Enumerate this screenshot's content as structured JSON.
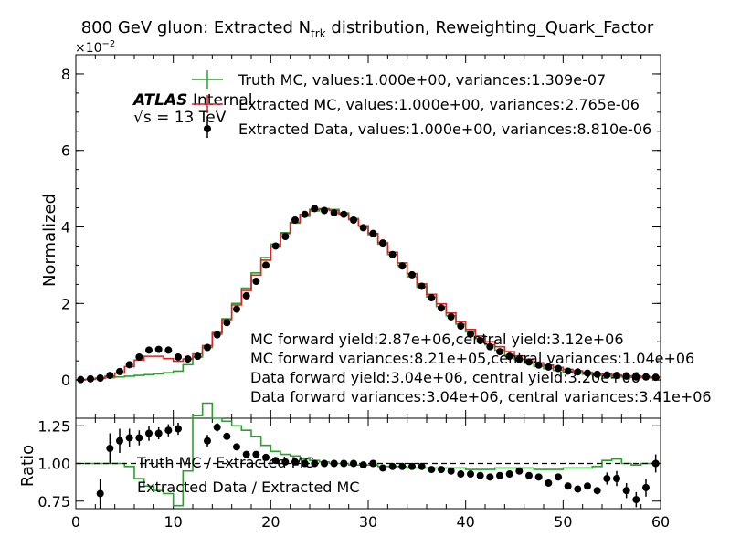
{
  "chart_data": [
    {
      "type": "step",
      "title_main": "800 GeV gluon: Extracted N",
      "title_sub": "trk",
      "title_rest": " distribution, Reweighting_Quark_Factor",
      "ylabel": "Normalized",
      "xlim": [
        0,
        60
      ],
      "ylim": [
        -0.01,
        0.085
      ],
      "yticks": [
        0,
        2,
        4,
        6,
        8
      ],
      "y_multiplier": "×10",
      "y_multiplier_exp": "−2",
      "atlas_label": "ATLAS",
      "atlas_sublabel": "Internal",
      "energy_label": "√s =  13 TeV",
      "legend": [
        {
          "label": "Truth MC, values:1.000e+00, variances:1.309e-07",
          "color": "#2ca02c",
          "marker": "step-errorbar"
        },
        {
          "label": "Extracted MC, values:1.000e+00, variances:2.765e-06",
          "color": "#d62728",
          "marker": "step-errorbar"
        },
        {
          "label": "Extracted Data, values:1.000e+00, variances:8.810e-06",
          "color": "#000000",
          "marker": "point"
        }
      ],
      "annotations": [
        "MC forward yield:2.87e+06,central yield:3.12e+06",
        "MC forward variances:8.21e+05,central variances:1.04e+06",
        "Data forward yield:3.04e+06, central yield:3.20e+06",
        "Data forward variances:3.04e+06, central variances:3.41e+06"
      ],
      "bin_edges_start": 0,
      "bin_width": 1,
      "series": [
        {
          "name": "Truth MC",
          "color": "#2ca02c",
          "values": [
            0,
            0.0002,
            0.0004,
            0.0006,
            0.0008,
            0.001,
            0.0012,
            0.0014,
            0.0016,
            0.0019,
            0.0023,
            0.004,
            0.006,
            0.0085,
            0.012,
            0.016,
            0.02,
            0.024,
            0.028,
            0.032,
            0.0355,
            0.0385,
            0.041,
            0.0428,
            0.0442,
            0.0448,
            0.0446,
            0.0437,
            0.0422,
            0.0402,
            0.038,
            0.0355,
            0.0328,
            0.0299,
            0.027,
            0.0243,
            0.0217,
            0.0192,
            0.0168,
            0.0146,
            0.0126,
            0.0108,
            0.0092,
            0.0078,
            0.0065,
            0.0054,
            0.0044,
            0.0036,
            0.003,
            0.0025,
            0.0021,
            0.0018,
            0.0015,
            0.0012,
            0.001,
            0.0009,
            0.0008,
            0.0007,
            0.0006,
            0.0005
          ]
        },
        {
          "name": "Extracted MC",
          "color": "#d62728",
          "values": [
            0.0001,
            0.0002,
            0.0005,
            0.001,
            0.0018,
            0.0035,
            0.0052,
            0.0062,
            0.0062,
            0.0056,
            0.0049,
            0.0055,
            0.0068,
            0.009,
            0.0124,
            0.0158,
            0.0196,
            0.0234,
            0.0274,
            0.0313,
            0.0348,
            0.0383,
            0.0412,
            0.0433,
            0.0446,
            0.0446,
            0.0443,
            0.0434,
            0.0419,
            0.0403,
            0.0383,
            0.0359,
            0.0334,
            0.0306,
            0.0278,
            0.0251,
            0.0224,
            0.0199,
            0.0175,
            0.0152,
            0.0132,
            0.0115,
            0.01,
            0.0087,
            0.0074,
            0.0063,
            0.0054,
            0.0045,
            0.0039,
            0.0033,
            0.0028,
            0.0024,
            0.002,
            0.0017,
            0.0015,
            0.0013,
            0.0011,
            0.001,
            0.0009,
            0.0008
          ]
        }
      ],
      "data_points": {
        "name": "Extracted Data",
        "color": "#000000",
        "x": [
          0.5,
          1.5,
          2.5,
          3.5,
          4.5,
          5.5,
          6.5,
          7.5,
          8.5,
          9.5,
          10.5,
          11.5,
          12.5,
          13.5,
          14.5,
          15.5,
          16.5,
          17.5,
          18.5,
          19.5,
          20.5,
          21.5,
          22.5,
          23.5,
          24.5,
          25.5,
          26.5,
          27.5,
          28.5,
          29.5,
          30.5,
          31.5,
          32.5,
          33.5,
          34.5,
          35.5,
          36.5,
          37.5,
          38.5,
          39.5,
          40.5,
          41.5,
          42.5,
          43.5,
          44.5,
          45.5,
          46.5,
          47.5,
          48.5,
          49.5,
          50.5,
          51.5,
          52.5,
          53.5,
          54.5,
          55.5,
          56.5,
          57.5,
          58.5,
          59.5
        ],
        "y": [
          0.0001,
          0.0003,
          0.0005,
          0.0012,
          0.0022,
          0.004,
          0.006,
          0.0078,
          0.008,
          0.0078,
          0.006,
          0.0055,
          0.0062,
          0.0085,
          0.0118,
          0.015,
          0.0185,
          0.022,
          0.0258,
          0.03,
          0.035,
          0.0375,
          0.0418,
          0.0433,
          0.0448,
          0.0443,
          0.0437,
          0.0433,
          0.0418,
          0.0398,
          0.0383,
          0.0358,
          0.0328,
          0.0298,
          0.0275,
          0.0245,
          0.0215,
          0.0188,
          0.0165,
          0.0141,
          0.012,
          0.0103,
          0.0087,
          0.0074,
          0.0062,
          0.0054,
          0.0047,
          0.0039,
          0.0034,
          0.003,
          0.0023,
          0.0021,
          0.0018,
          0.0015,
          0.0013,
          0.0012,
          0.001,
          0.0008,
          0.0008,
          0.0007
        ],
        "err": [
          5e-05,
          8e-05,
          0.0001,
          0.00015,
          0.0002,
          0.0003,
          0.0003,
          0.0003,
          0.0003,
          0.0003,
          0.0003,
          0.0003,
          0.0003,
          0.0003,
          0.0003,
          0.0003,
          0.0003,
          0.0003,
          0.0003,
          0.0003,
          0.0003,
          0.0003,
          0.0003,
          0.0003,
          0.0003,
          0.0003,
          0.0003,
          0.0003,
          0.0003,
          0.0003,
          0.0003,
          0.0003,
          0.0003,
          0.0003,
          0.0003,
          0.0003,
          0.0003,
          0.0003,
          0.0003,
          0.0003,
          0.0003,
          0.0003,
          0.0002,
          0.0002,
          0.0002,
          0.0002,
          0.0002,
          0.0002,
          0.0002,
          0.0002,
          0.0002,
          0.0002,
          0.0002,
          0.0002,
          0.0002,
          0.0001,
          0.0001,
          0.0001,
          0.0001,
          0.0001
        ]
      }
    },
    {
      "type": "ratio",
      "ylabel": "Ratio",
      "xlabel": "",
      "xlim": [
        0,
        60
      ],
      "ylim": [
        0.7,
        1.3
      ],
      "xticks": [
        0,
        10,
        20,
        30,
        40,
        50,
        60
      ],
      "yticks": [
        "0.75",
        "1.00",
        "1.25"
      ],
      "reference_line": 1.0,
      "legend": [
        {
          "label": "Truth MC / Extracted MC",
          "color": "#2ca02c"
        },
        {
          "label": "Extracted Data / Extracted MC",
          "color": "#000000"
        }
      ],
      "series": [
        {
          "name": "Truth MC / Extracted MC",
          "color": "#2ca02c",
          "values": [
            1.0,
            1.0,
            1.0,
            1.0,
            1.0,
            0.98,
            0.9,
            0.85,
            0.82,
            0.8,
            0.72,
            0.95,
            1.32,
            1.4,
            1.3,
            1.28,
            1.25,
            1.22,
            1.18,
            1.12,
            1.08,
            1.06,
            1.05,
            1.03,
            1.02,
            1.01,
            1.0,
            1.0,
            0.99,
            0.99,
            0.99,
            0.98,
            0.98,
            0.98,
            0.97,
            0.97,
            0.97,
            0.97,
            0.97,
            0.97,
            0.96,
            0.96,
            0.96,
            0.97,
            0.97,
            0.97,
            0.97,
            0.96,
            0.96,
            0.96,
            0.97,
            0.97,
            0.97,
            0.98,
            1.02,
            1.03,
            1.0,
            0.99,
            1.0,
            1.0
          ]
        }
      ],
      "data_points": {
        "name": "Extracted Data / Extracted MC",
        "color": "#000000",
        "x": [
          2.5,
          3.5,
          4.5,
          5.5,
          6.5,
          7.5,
          8.5,
          9.5,
          10.5,
          13.5,
          14.5,
          15.5,
          16.5,
          17.5,
          18.5,
          19.5,
          20.5,
          21.5,
          22.5,
          23.5,
          24.5,
          25.5,
          26.5,
          27.5,
          28.5,
          29.5,
          30.5,
          31.5,
          32.5,
          33.5,
          34.5,
          35.5,
          36.5,
          37.5,
          38.5,
          39.5,
          40.5,
          41.5,
          42.5,
          43.5,
          44.5,
          45.5,
          46.5,
          47.5,
          48.5,
          49.5,
          50.5,
          51.5,
          52.5,
          53.5,
          54.5,
          55.5,
          56.5,
          57.5,
          58.5,
          59.5
        ],
        "y": [
          0.8,
          1.1,
          1.15,
          1.17,
          1.17,
          1.2,
          1.2,
          1.22,
          1.23,
          1.15,
          1.24,
          1.18,
          1.11,
          1.06,
          1.06,
          1.04,
          1.02,
          1.01,
          1.01,
          1.0,
          1.0,
          1.0,
          1.0,
          1.0,
          1.0,
          0.99,
          1.0,
          0.97,
          0.98,
          0.98,
          0.98,
          0.98,
          0.96,
          0.96,
          0.95,
          0.93,
          0.93,
          0.92,
          0.91,
          0.92,
          0.93,
          0.95,
          0.92,
          0.91,
          0.87,
          0.91,
          0.85,
          0.83,
          0.85,
          0.82,
          0.9,
          0.9,
          0.82,
          0.76,
          0.84,
          1.0
        ],
        "err": [
          0.1,
          0.1,
          0.08,
          0.06,
          0.05,
          0.05,
          0.04,
          0.04,
          0.04,
          0.04,
          0.03,
          0.02,
          0.02,
          0.01,
          0.01,
          0.01,
          0.01,
          0.01,
          0.01,
          0.01,
          0.01,
          0.01,
          0.01,
          0.01,
          0.01,
          0.01,
          0.01,
          0.01,
          0.01,
          0.01,
          0.01,
          0.01,
          0.01,
          0.01,
          0.01,
          0.01,
          0.01,
          0.01,
          0.01,
          0.01,
          0.01,
          0.01,
          0.01,
          0.01,
          0.02,
          0.02,
          0.02,
          0.02,
          0.02,
          0.02,
          0.04,
          0.05,
          0.05,
          0.05,
          0.06,
          0.06
        ]
      }
    }
  ]
}
